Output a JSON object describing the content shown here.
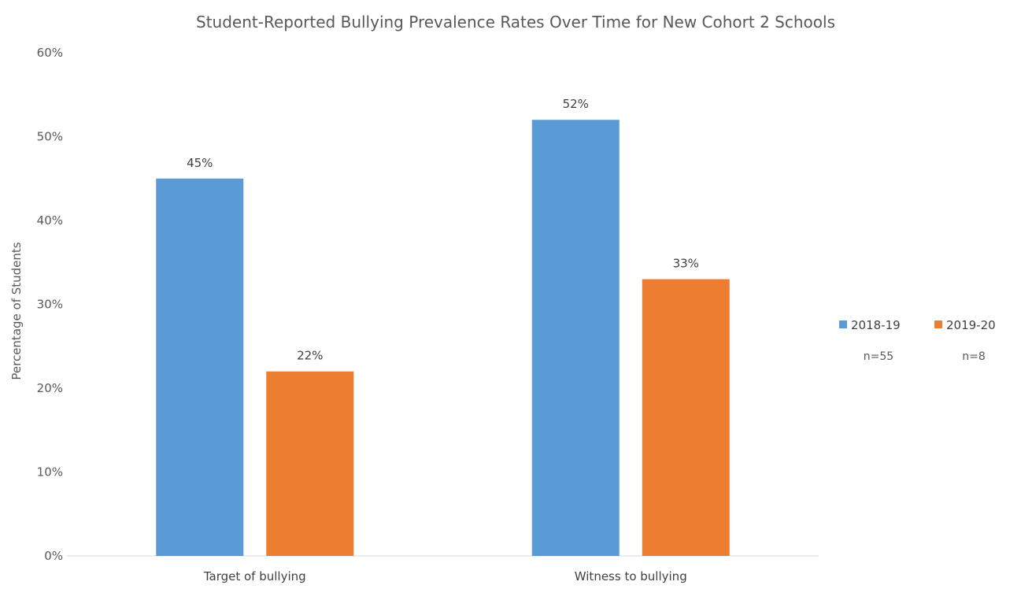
{
  "chart_data": {
    "type": "bar",
    "title": "Student-Reported Bullying Prevalence Rates Over Time for New Cohort 2 Schools",
    "xlabel": "",
    "ylabel": "Percentage of Students",
    "categories": [
      "Target of bullying",
      "Witness to bullying"
    ],
    "series": [
      {
        "name": "2018-19",
        "n_label": "n=55",
        "color": "#5B9BD5",
        "values": [
          45,
          52
        ],
        "value_labels": [
          "45%",
          "52%"
        ]
      },
      {
        "name": "2019-20",
        "n_label": "n=8",
        "color": "#ED7D31",
        "values": [
          22,
          33
        ],
        "value_labels": [
          "22%",
          "33%"
        ]
      }
    ],
    "ylim": [
      0,
      60
    ],
    "yticks": [
      0,
      10,
      20,
      30,
      40,
      50,
      60
    ],
    "ytick_labels": [
      "0%",
      "10%",
      "20%",
      "30%",
      "40%",
      "50%",
      "60%"
    ],
    "grid": false,
    "legend_position": "right"
  }
}
